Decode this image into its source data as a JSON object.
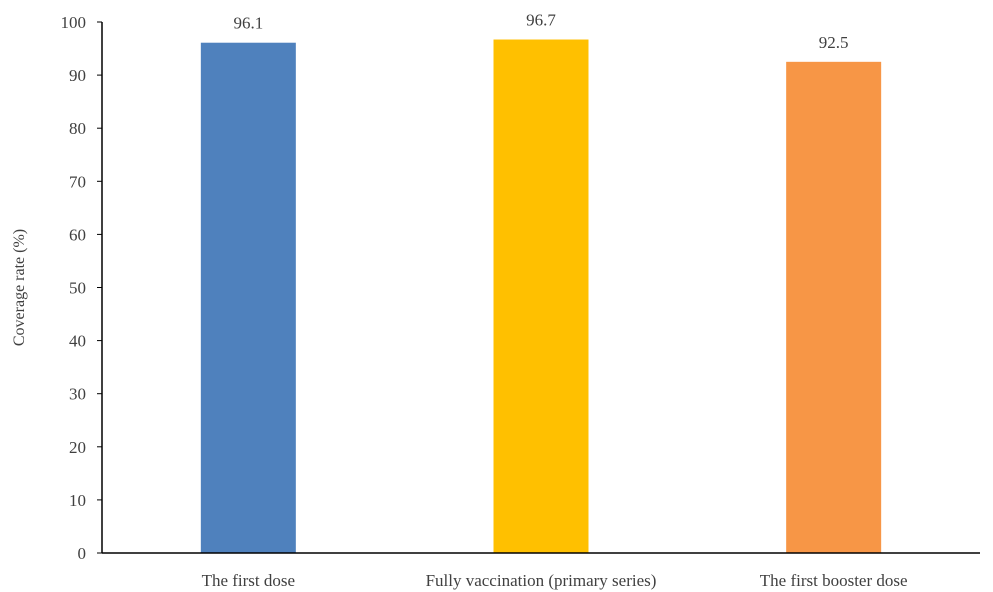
{
  "chart_data": {
    "type": "bar",
    "title": "",
    "xlabel": "",
    "ylabel": "Coverage rate (%)",
    "ylim": [
      0,
      100
    ],
    "yticks": [
      0,
      10,
      20,
      30,
      40,
      50,
      60,
      70,
      80,
      90,
      100
    ],
    "grid": false,
    "legend": "none",
    "categories": [
      "The first dose",
      "Fully vaccination (primary series)",
      "The first booster dose"
    ],
    "values": [
      96.1,
      96.7,
      92.5
    ],
    "data_labels": [
      "96.1",
      "96.7",
      "92.5"
    ],
    "colors": [
      "#4F81BD",
      "#FFC000",
      "#F79646"
    ]
  }
}
